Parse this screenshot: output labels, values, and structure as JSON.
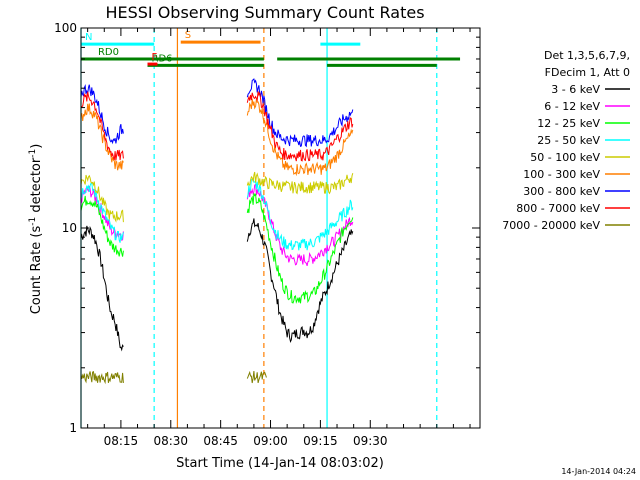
{
  "chart_data": {
    "type": "line",
    "title": "HESSI Observing Summary Count Rates",
    "xlabel": "Start Time (14-Jan-14 08:03:02)",
    "ylabel_main": "Count Rate (s",
    "ylabel_sup1": "-1",
    "ylabel_mid": " detector",
    "ylabel_sup2": "-1",
    "ylabel_end": ")",
    "yscale": "log",
    "ylim": [
      1,
      100
    ],
    "xlim_minutes": [
      0,
      120
    ],
    "x_ticks": [
      {
        "minute": 12,
        "label": "08:15"
      },
      {
        "minute": 27,
        "label": "08:30"
      },
      {
        "minute": 42,
        "label": "08:45"
      },
      {
        "minute": 57,
        "label": "09:00"
      },
      {
        "minute": 72,
        "label": "09:15"
      },
      {
        "minute": 87,
        "label": "09:30"
      }
    ],
    "y_ticks": [
      {
        "value": 1,
        "label": "1"
      },
      {
        "value": 10,
        "label": "10"
      },
      {
        "value": 100,
        "label": "100"
      }
    ],
    "legend": {
      "placement": "right",
      "header": [
        "Det 1,3,5,6,7,9,",
        "FDecim 1, Att 0"
      ]
    },
    "series": [
      {
        "name": "3 - 6 keV",
        "color": "#000000",
        "values": [
          9,
          9.5,
          9.8,
          9.6,
          9,
          8,
          6.8,
          5.6,
          4.5,
          3.8,
          3.5,
          3,
          2.5,
          null,
          null,
          null,
          null,
          null,
          null,
          null,
          null,
          null,
          null,
          null,
          null,
          null,
          null,
          null,
          null,
          null,
          null,
          null,
          null,
          null,
          null,
          null,
          null,
          null,
          null,
          null,
          null,
          null,
          null,
          null,
          null,
          null,
          null,
          null,
          null,
          null,
          9,
          10,
          10.5,
          10.3,
          9.5,
          8.5,
          7.3,
          6,
          5.2,
          4.3,
          3.7,
          3.3,
          3,
          2.9,
          2.9,
          3,
          3,
          3.1,
          3,
          3.1,
          3.3,
          3.8,
          4.2,
          4.6,
          5,
          5.5,
          6,
          6.6,
          7.2,
          7.8,
          8.5,
          9.2
        ]
      },
      {
        "name": "6 - 12 keV",
        "color": "#ff00ff",
        "values": [
          14,
          15,
          15.5,
          15.2,
          14.5,
          13.5,
          12.5,
          11.5,
          10.5,
          9.8,
          9.5,
          9.5,
          9.3,
          null,
          null,
          null,
          null,
          null,
          null,
          null,
          null,
          null,
          null,
          null,
          null,
          null,
          null,
          null,
          null,
          null,
          null,
          null,
          null,
          null,
          null,
          null,
          null,
          null,
          null,
          null,
          null,
          null,
          null,
          null,
          null,
          null,
          null,
          null,
          null,
          null,
          14,
          15.5,
          16,
          15.5,
          14.8,
          13.5,
          12.5,
          11,
          9.8,
          8.8,
          8,
          7.5,
          7.2,
          7,
          7,
          6.9,
          6.9,
          7,
          6.9,
          7,
          7.1,
          7.3,
          7.5,
          7.8,
          8.1,
          8.3,
          8.6,
          9,
          9.5,
          10,
          10.5,
          11
        ]
      },
      {
        "name": "12 - 25 keV",
        "color": "#00ff00",
        "values": [
          13,
          13.5,
          14,
          13.8,
          13.3,
          12.5,
          11.2,
          10,
          9,
          8.3,
          8,
          7.8,
          7.7,
          null,
          null,
          null,
          null,
          null,
          null,
          null,
          null,
          null,
          null,
          null,
          null,
          null,
          null,
          null,
          null,
          null,
          null,
          null,
          null,
          null,
          null,
          null,
          null,
          null,
          null,
          null,
          null,
          null,
          null,
          null,
          null,
          null,
          null,
          null,
          null,
          null,
          12,
          13.5,
          14,
          13.8,
          13,
          11.5,
          10,
          8.5,
          7.3,
          6.3,
          5.6,
          5.1,
          4.8,
          4.6,
          4.5,
          4.5,
          4.5,
          4.5,
          4.6,
          4.6,
          4.7,
          5,
          5.4,
          5.8,
          6.3,
          6.9,
          7.5,
          8.2,
          9,
          9.8,
          10.5,
          11.3
        ]
      },
      {
        "name": "25 - 50 keV",
        "color": "#00ffff",
        "values": [
          15,
          15.8,
          16.2,
          16,
          15.3,
          14,
          12.8,
          11.8,
          10.8,
          10,
          9.5,
          9,
          9,
          null,
          null,
          null,
          null,
          null,
          null,
          null,
          null,
          null,
          null,
          null,
          null,
          null,
          null,
          null,
          null,
          null,
          null,
          null,
          null,
          null,
          null,
          null,
          null,
          null,
          null,
          null,
          null,
          null,
          null,
          null,
          null,
          null,
          null,
          null,
          null,
          null,
          15,
          16.5,
          17,
          16.5,
          15.5,
          14,
          12.5,
          11,
          10,
          9.3,
          8.8,
          8.5,
          8.3,
          8.2,
          8.2,
          8.2,
          8.2,
          8.3,
          8.3,
          8.4,
          8.5,
          8.7,
          9,
          9.3,
          9.6,
          10,
          10.4,
          10.8,
          11.3,
          11.8,
          12.3,
          13
        ]
      },
      {
        "name": "50 - 100 keV",
        "color": "#cccc00",
        "values": [
          17,
          17.5,
          18,
          17.6,
          16.8,
          15.5,
          14,
          13,
          12,
          11.5,
          11.5,
          11.5,
          11.5,
          null,
          null,
          null,
          null,
          null,
          null,
          null,
          null,
          null,
          null,
          null,
          null,
          null,
          null,
          null,
          null,
          null,
          null,
          null,
          null,
          null,
          null,
          null,
          null,
          null,
          null,
          null,
          null,
          null,
          null,
          null,
          null,
          null,
          null,
          null,
          null,
          null,
          16.5,
          17.5,
          18,
          17.8,
          17.3,
          17,
          16.8,
          16.6,
          16.5,
          16.4,
          16.3,
          16.2,
          16.1,
          16,
          16,
          16,
          16,
          16,
          16,
          16,
          16,
          16,
          16,
          16,
          16,
          16,
          16,
          16,
          16.5,
          17,
          17.5,
          18
        ]
      },
      {
        "name": "100 - 300 keV",
        "color": "#ff7f00",
        "values": [
          35,
          38,
          40,
          39,
          37,
          34,
          30,
          27,
          24.5,
          22.5,
          21,
          20.5,
          20.5,
          null,
          null,
          null,
          null,
          null,
          null,
          null,
          null,
          null,
          null,
          null,
          null,
          null,
          null,
          null,
          null,
          null,
          null,
          null,
          null,
          null,
          null,
          null,
          null,
          null,
          null,
          null,
          null,
          null,
          null,
          null,
          null,
          null,
          null,
          null,
          null,
          null,
          37,
          41,
          43,
          42,
          40,
          36,
          32,
          28,
          25,
          23,
          21.5,
          20.5,
          20,
          19.8,
          19.8,
          19.8,
          19.8,
          19.8,
          19.8,
          19.8,
          19.8,
          19.8,
          19.8,
          19.8,
          20,
          21,
          22,
          23,
          24.5,
          26,
          27.5,
          29
        ]
      },
      {
        "name": "300 - 800 keV",
        "color": "#0000ff",
        "values": [
          47,
          49,
          50,
          49,
          46,
          42,
          37,
          33,
          30,
          28,
          27,
          29,
          31,
          null,
          null,
          null,
          null,
          null,
          null,
          null,
          null,
          null,
          null,
          null,
          null,
          null,
          null,
          null,
          null,
          null,
          null,
          null,
          null,
          null,
          null,
          null,
          null,
          null,
          null,
          null,
          null,
          null,
          null,
          null,
          null,
          null,
          null,
          null,
          null,
          null,
          48,
          51,
          52,
          51,
          48,
          43,
          38,
          34,
          31,
          29.5,
          28.5,
          28,
          27.8,
          27.5,
          27.5,
          27.5,
          27.5,
          27.5,
          27.5,
          27.5,
          27.5,
          27.5,
          27.5,
          27.5,
          28,
          29,
          30.5,
          32,
          33.5,
          35,
          36,
          37.5
        ]
      },
      {
        "name": "800 - 7000 keV",
        "color": "#ff0000",
        "values": [
          42,
          44,
          45,
          44,
          42,
          38,
          33,
          29,
          26,
          24,
          23,
          23,
          23,
          null,
          null,
          null,
          null,
          null,
          null,
          null,
          null,
          null,
          null,
          null,
          null,
          null,
          null,
          null,
          null,
          null,
          null,
          null,
          null,
          null,
          null,
          null,
          null,
          null,
          null,
          null,
          null,
          null,
          null,
          null,
          null,
          null,
          null,
          null,
          null,
          null,
          43,
          46,
          47,
          46,
          44,
          40,
          35,
          31,
          28,
          25.5,
          24,
          23.5,
          23.3,
          23.2,
          23.2,
          23.2,
          23.2,
          23.2,
          23.2,
          23.2,
          23.2,
          23.2,
          23.2,
          23.2,
          24,
          25,
          26.5,
          28,
          29.5,
          31,
          32.5,
          34
        ]
      },
      {
        "name": "7000 - 20000 keV",
        "color": "#808000",
        "values": [
          1.8,
          1.8,
          1.8,
          1.8,
          1.8,
          1.8,
          1.8,
          1.8,
          1.8,
          1.8,
          1.8,
          1.8,
          1.8,
          null,
          null,
          null,
          null,
          null,
          null,
          null,
          null,
          null,
          null,
          null,
          null,
          null,
          null,
          null,
          null,
          null,
          null,
          null,
          null,
          null,
          null,
          null,
          null,
          null,
          null,
          null,
          null,
          null,
          null,
          null,
          null,
          null,
          null,
          null,
          null,
          null,
          1.8,
          1.8,
          1.8,
          1.8,
          1.8,
          1.8,
          null,
          null,
          null,
          null,
          null,
          null,
          null,
          null,
          null,
          null,
          null,
          null,
          null,
          null,
          null,
          null,
          null,
          null,
          null,
          null,
          null,
          null,
          null,
          null,
          null,
          null
        ]
      }
    ],
    "flag_bars": [
      {
        "label": "RD0",
        "color": "#008000",
        "y": 70,
        "segments": [
          [
            0,
            55
          ],
          [
            59,
            114
          ]
        ]
      },
      {
        "label": "RD6",
        "color": "#008000",
        "y": 65,
        "segments": [
          [
            20,
            55
          ],
          [
            74,
            107
          ]
        ]
      },
      {
        "label": "N",
        "color": "#00ffff",
        "y": 83,
        "segments": [
          [
            0,
            22
          ],
          [
            72,
            84
          ]
        ]
      },
      {
        "label": "S",
        "color": "#ff7f00",
        "y": 85,
        "segments": [
          [
            30,
            54
          ]
        ]
      },
      {
        "label": "F",
        "color": "#ff0000",
        "y": 66,
        "segments": [
          [
            20,
            23
          ]
        ]
      }
    ],
    "event_lines": [
      {
        "minute": 0,
        "color": "#00ffff",
        "style": "solid"
      },
      {
        "minute": 22,
        "color": "#00ffff",
        "style": "dashed"
      },
      {
        "minute": 29,
        "color": "#ff7f00",
        "style": "solid"
      },
      {
        "minute": 55,
        "color": "#ff7f00",
        "style": "dashed"
      },
      {
        "minute": 74,
        "color": "#00ffff",
        "style": "solid"
      },
      {
        "minute": 107,
        "color": "#00ffff",
        "style": "dashed"
      }
    ],
    "footer_date": "14-Jan-2014 04:24"
  }
}
